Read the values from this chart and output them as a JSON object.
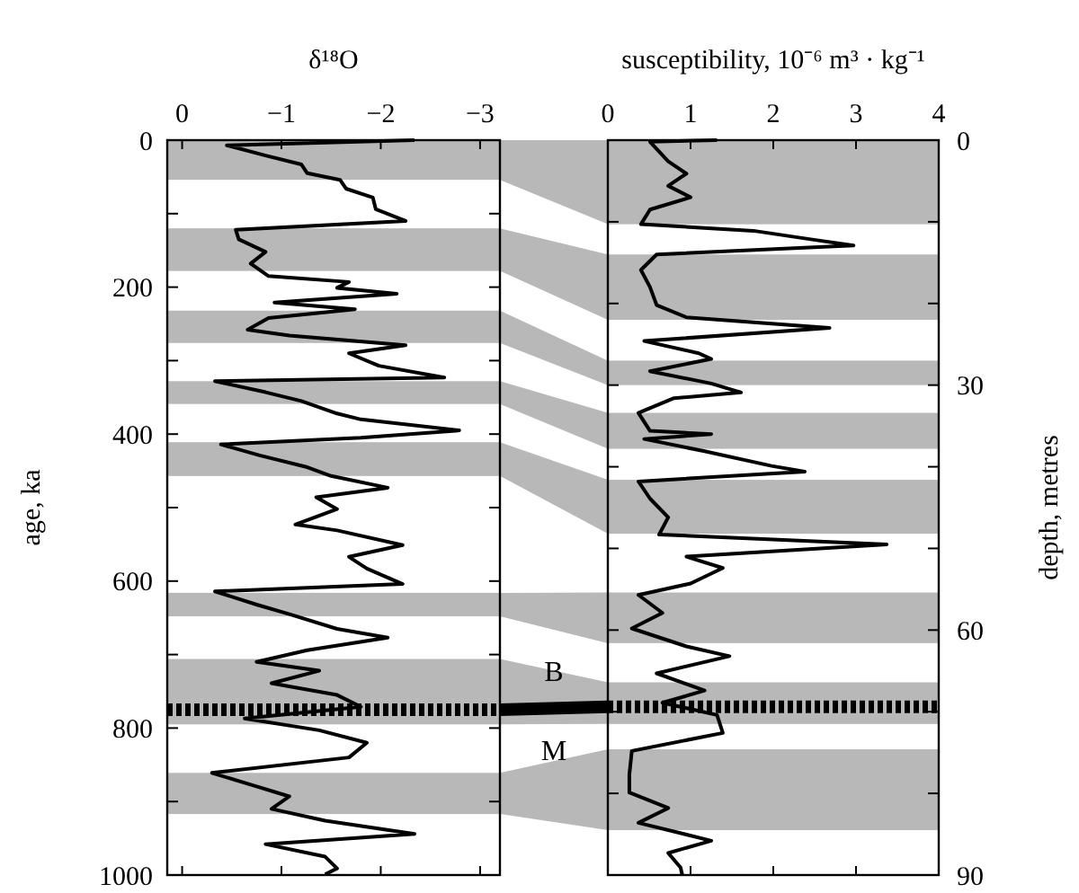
{
  "chart_data": [
    {
      "type": "line",
      "xlabel": "δ¹⁸O",
      "ylabel": "age, ka",
      "xlim": [
        0.15,
        -3.2
      ],
      "xticks": [
        0,
        {
          "value": -1,
          "label": "−1"
        },
        {
          "value": -2,
          "label": "−2"
        },
        {
          "value": -3,
          "label": "−3"
        }
      ],
      "ylim": [
        1000,
        0
      ],
      "yticks": [
        0,
        {
          "value": 100,
          "label": null
        },
        200,
        {
          "value": 300,
          "label": null
        },
        400,
        {
          "value": 500,
          "label": null
        },
        600,
        {
          "value": 700,
          "label": null
        },
        800,
        {
          "value": 900,
          "label": null
        },
        1000
      ],
      "bands": [
        {
          "axis": "y",
          "from": 0,
          "to": 54,
          "color": "#b8b8b8"
        },
        {
          "axis": "y",
          "from": 120,
          "to": 178,
          "color": "#b8b8b8"
        },
        {
          "axis": "y",
          "from": 232,
          "to": 276,
          "color": "#b8b8b8"
        },
        {
          "axis": "y",
          "from": 328,
          "to": 359,
          "color": "#b8b8b8"
        },
        {
          "axis": "y",
          "from": 411,
          "to": 457,
          "color": "#b8b8b8"
        },
        {
          "axis": "y",
          "from": 616,
          "to": 648,
          "color": "#b8b8b8"
        },
        {
          "axis": "y",
          "from": 706,
          "to": 795,
          "color": "#b8b8b8"
        },
        {
          "axis": "y",
          "from": 861,
          "to": 917,
          "color": "#b8b8b8"
        }
      ],
      "ref_lines": [
        {
          "axis": "y",
          "value": 775,
          "color": "#000000",
          "line_style": "dashed"
        }
      ],
      "annotations": [
        "B",
        "M"
      ],
      "series": [
        {
          "color": "#000000",
          "x": [
            -2.34,
            -0.45,
            -0.84,
            -1.2,
            -1.26,
            -1.59,
            -1.65,
            -1.92,
            -1.95,
            -2.25,
            -0.54,
            -0.57,
            -0.84,
            -0.69,
            -0.87,
            -1.68,
            -1.56,
            -2.16,
            -0.93,
            -1.74,
            -0.87,
            -0.66,
            -1.08,
            -2.25,
            -1.68,
            -1.98,
            -2.64,
            -0.33,
            -0.84,
            -1.2,
            -1.56,
            -1.8,
            -2.79,
            -1.8,
            -0.39,
            -0.78,
            -1.26,
            -1.5,
            -2.07,
            -1.35,
            -1.56,
            -1.14,
            -1.56,
            -2.22,
            -1.68,
            -1.86,
            -2.22,
            -0.33,
            -0.75,
            -1.08,
            -1.56,
            -2.07,
            -1.26,
            -0.75,
            -1.38,
            -0.9,
            -1.56,
            -1.8,
            -0.63,
            -1.38,
            -1.86,
            -1.68,
            -0.3,
            -0.69,
            -1.08,
            -0.9,
            -1.44,
            -2.34,
            -0.84,
            -1.44,
            -1.56,
            -1.44
          ],
          "values": [
            0,
            7,
            21,
            33,
            45,
            54,
            66,
            78,
            94,
            110,
            122,
            135,
            152,
            168,
            185,
            193,
            201,
            209,
            221,
            230,
            242,
            258,
            266,
            279,
            290,
            307,
            323,
            328,
            343,
            355,
            372,
            380,
            395,
            405,
            414,
            429,
            445,
            457,
            473,
            486,
            502,
            523,
            531,
            551,
            567,
            583,
            604,
            614,
            632,
            645,
            665,
            677,
            694,
            710,
            722,
            739,
            755,
            771,
            787,
            803,
            820,
            840,
            861,
            877,
            893,
            910,
            926,
            944,
            958,
            975,
            991,
            999
          ]
        }
      ]
    },
    {
      "type": "line",
      "xlabel": "susceptibility, 10⁻⁶ m³ · kg⁻¹",
      "y2label": "depth, metres",
      "xlim": [
        0,
        4
      ],
      "xticks": [
        0,
        1,
        2,
        3,
        4
      ],
      "y2lim": [
        90,
        0
      ],
      "y2ticks": [
        0,
        {
          "value": 10,
          "label": null
        },
        {
          "value": 20,
          "label": null
        },
        30,
        {
          "value": 40,
          "label": null
        },
        {
          "value": 50,
          "label": null
        },
        60,
        {
          "value": 70,
          "label": null
        },
        {
          "value": 80,
          "label": null
        },
        90
      ],
      "bands": [
        {
          "axis": "y2",
          "from": 0,
          "to": 10.3,
          "color": "#b8b8b8"
        },
        {
          "axis": "y2",
          "from": 14,
          "to": 22,
          "color": "#b8b8b8"
        },
        {
          "axis": "y2",
          "from": 27,
          "to": 30,
          "color": "#b8b8b8"
        },
        {
          "axis": "y2",
          "from": 33.4,
          "to": 37.8,
          "color": "#b8b8b8"
        },
        {
          "axis": "y2",
          "from": 41.6,
          "to": 48.2,
          "color": "#b8b8b8"
        },
        {
          "axis": "y2",
          "from": 55.4,
          "to": 61.6,
          "color": "#b8b8b8"
        },
        {
          "axis": "y2",
          "from": 66.4,
          "to": 71.5,
          "color": "#b8b8b8"
        },
        {
          "axis": "y2",
          "from": 74.6,
          "to": 84.5,
          "color": "#b8b8b8"
        }
      ],
      "ref_lines": [
        {
          "axis": "y2",
          "value": 69.4,
          "color": "#000000",
          "line_style": "dashed"
        }
      ],
      "series": [
        {
          "color": "#000000",
          "axis": "y2",
          "x": [
            1.32,
            0.51,
            0.73,
            0.95,
            0.73,
            1.0,
            0.51,
            0.4,
            1.76,
            2.49,
            2.97,
            0.59,
            0.4,
            0.51,
            0.59,
            0.95,
            2.68,
            0.44,
            1.1,
            1.25,
            0.51,
            1.25,
            1.61,
            0.8,
            0.37,
            0.51,
            1.25,
            0.44,
            1.17,
            1.98,
            2.38,
            0.37,
            0.51,
            0.73,
            0.62,
            3.37,
            0.95,
            1.39,
            1.0,
            0.37,
            0.66,
            0.29,
            0.95,
            1.47,
            0.59,
            1.17,
            0.66,
            1.32,
            1.39,
            0.29,
            0.26,
            0.26,
            0.73,
            0.37,
            1.25,
            0.73,
            0.88,
            0.9
          ],
          "values": [
            0,
            0.2,
            2.6,
            4.1,
            5.6,
            7.0,
            8.5,
            10.3,
            11.1,
            12.2,
            12.9,
            14.0,
            15.9,
            18.0,
            20.2,
            21.7,
            23.0,
            24.6,
            26.1,
            26.8,
            28.3,
            29.8,
            30.9,
            31.6,
            33.4,
            35.6,
            36.0,
            36.6,
            38.1,
            39.9,
            40.6,
            41.8,
            43.9,
            46.2,
            48.3,
            49.5,
            51.0,
            52.4,
            54.3,
            55.7,
            57.9,
            59.8,
            62.0,
            63.2,
            65.3,
            67.4,
            68.9,
            70.4,
            72.6,
            74.8,
            77.7,
            79.9,
            81.8,
            83.6,
            85.8,
            87.3,
            89.1,
            90
          ]
        }
      ]
    }
  ]
}
